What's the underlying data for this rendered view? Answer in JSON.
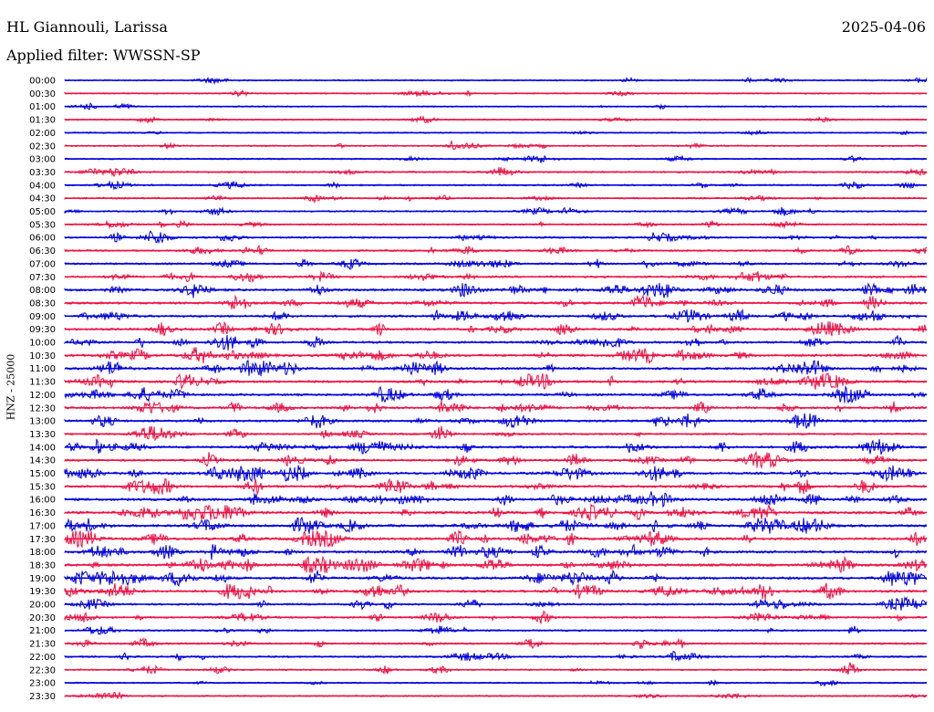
{
  "header": {
    "station": "HL Giannouli, Larissa",
    "date": "2025-04-06",
    "filter": "Applied filter: WWSSN-SP"
  },
  "y_axis_label": "HNZ - 25000",
  "colors": {
    "blue": "#0000dd",
    "red": "#ee1144"
  },
  "chart_data": {
    "type": "line",
    "title": "HL Giannouli, Larissa",
    "subtitle": "Applied filter: WWSSN-SP",
    "ylabel": "HNZ - 25000",
    "color_cycle": [
      "blue",
      "red"
    ],
    "rows": [
      {
        "label": "00:00",
        "activity": 0.15
      },
      {
        "label": "00:30",
        "activity": 0.15
      },
      {
        "label": "01:00",
        "activity": 0.1
      },
      {
        "label": "01:30",
        "activity": 0.15
      },
      {
        "label": "02:00",
        "activity": 0.1
      },
      {
        "label": "02:30",
        "activity": 0.25
      },
      {
        "label": "03:00",
        "activity": 0.2
      },
      {
        "label": "03:30",
        "activity": 0.35
      },
      {
        "label": "04:00",
        "activity": 0.25
      },
      {
        "label": "04:30",
        "activity": 0.3
      },
      {
        "label": "05:00",
        "activity": 0.3
      },
      {
        "label": "05:30",
        "activity": 0.3
      },
      {
        "label": "06:00",
        "activity": 0.45
      },
      {
        "label": "06:30",
        "activity": 0.4
      },
      {
        "label": "07:00",
        "activity": 0.5
      },
      {
        "label": "07:30",
        "activity": 0.55
      },
      {
        "label": "08:00",
        "activity": 0.75
      },
      {
        "label": "08:30",
        "activity": 0.75
      },
      {
        "label": "09:00",
        "activity": 0.7
      },
      {
        "label": "09:30",
        "activity": 0.7
      },
      {
        "label": "10:00",
        "activity": 0.65
      },
      {
        "label": "10:30",
        "activity": 0.8
      },
      {
        "label": "11:00",
        "activity": 0.8
      },
      {
        "label": "11:30",
        "activity": 0.75
      },
      {
        "label": "12:00",
        "activity": 0.7
      },
      {
        "label": "12:30",
        "activity": 0.75
      },
      {
        "label": "13:00",
        "activity": 0.7
      },
      {
        "label": "13:30",
        "activity": 0.45
      },
      {
        "label": "14:00",
        "activity": 0.75
      },
      {
        "label": "14:30",
        "activity": 0.65
      },
      {
        "label": "15:00",
        "activity": 0.8
      },
      {
        "label": "15:30",
        "activity": 0.8
      },
      {
        "label": "16:00",
        "activity": 0.9
      },
      {
        "label": "16:30",
        "activity": 0.9
      },
      {
        "label": "17:00",
        "activity": 0.85
      },
      {
        "label": "17:30",
        "activity": 0.9
      },
      {
        "label": "18:00",
        "activity": 0.85
      },
      {
        "label": "18:30",
        "activity": 0.9
      },
      {
        "label": "19:00",
        "activity": 0.85
      },
      {
        "label": "19:30",
        "activity": 0.8
      },
      {
        "label": "20:00",
        "activity": 0.5
      },
      {
        "label": "20:30",
        "activity": 0.5
      },
      {
        "label": "21:00",
        "activity": 0.35
      },
      {
        "label": "21:30",
        "activity": 0.45
      },
      {
        "label": "22:00",
        "activity": 0.4
      },
      {
        "label": "22:30",
        "activity": 0.25
      },
      {
        "label": "23:00",
        "activity": 0.2
      },
      {
        "label": "23:30",
        "activity": 0.2
      }
    ]
  }
}
